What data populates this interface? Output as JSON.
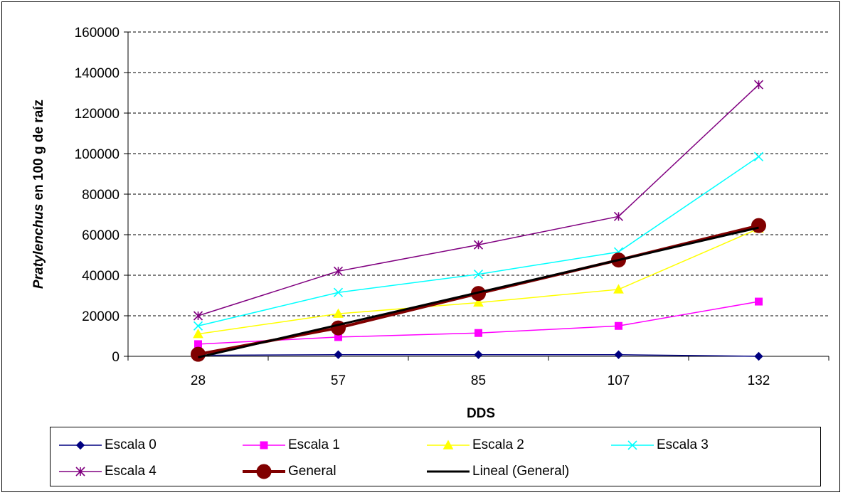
{
  "chart_data": {
    "type": "line",
    "title": "",
    "xlabel": "DDS",
    "ylabel_italic": "Pratylenchus",
    "ylabel_rest": " en 100 g de raíz",
    "categories": [
      "28",
      "57",
      "85",
      "107",
      "132"
    ],
    "ylim": [
      0,
      160000
    ],
    "yticks": [
      0,
      20000,
      40000,
      60000,
      80000,
      100000,
      120000,
      140000,
      160000
    ],
    "grid": "horizontal dashed",
    "legend_position": "bottom",
    "series": [
      {
        "name": "Escala 0",
        "values": [
          500,
          800,
          800,
          800,
          0
        ],
        "color": "#000080",
        "marker": "diamond"
      },
      {
        "name": "Escala 1",
        "values": [
          6000,
          9500,
          11500,
          15000,
          27000
        ],
        "color": "#FF00FF",
        "marker": "square"
      },
      {
        "name": "Escala 2",
        "values": [
          11000,
          21000,
          26500,
          33000,
          63000
        ],
        "color": "#FFFF00",
        "marker": "triangle"
      },
      {
        "name": "Escala 3",
        "values": [
          15000,
          31500,
          40500,
          51500,
          98500
        ],
        "color": "#00FFFF",
        "marker": "x"
      },
      {
        "name": "Escala 4",
        "values": [
          20000,
          42000,
          55000,
          69000,
          134000
        ],
        "color": "#800080",
        "marker": "star"
      },
      {
        "name": "General",
        "values": [
          1000,
          14000,
          31000,
          47500,
          64500
        ],
        "color": "#800000",
        "marker": "circle"
      },
      {
        "name": "Lineal (General)",
        "values": [
          -500,
          15500,
          31500,
          47500,
          63500
        ],
        "color": "#000000",
        "marker": "none"
      }
    ]
  }
}
